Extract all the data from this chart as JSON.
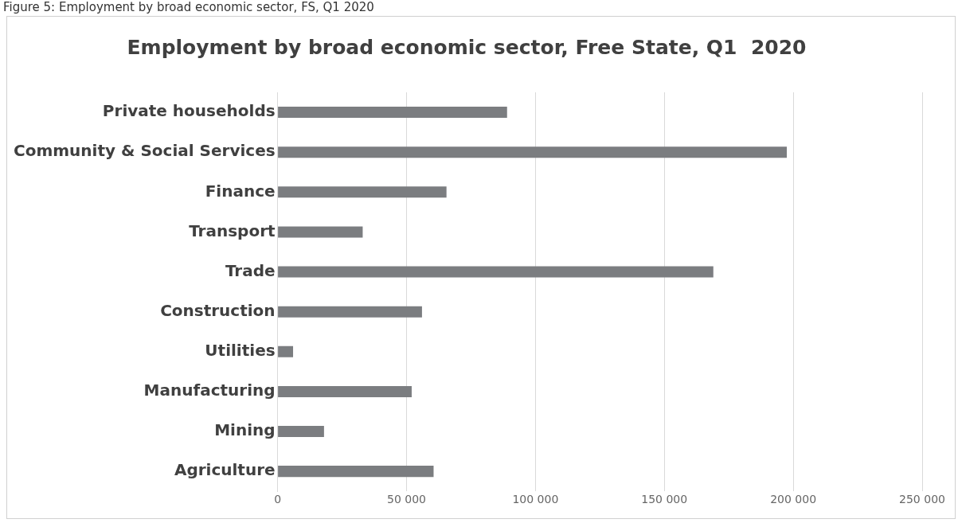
{
  "chart_data": {
    "type": "bar",
    "orientation": "horizontal",
    "title": "Employment by broad economic sector, Free State, Q1  2020",
    "annotations": [
      "Figure 5:  Employment by broad economic sector, FS, Q1 2020"
    ],
    "categories": [
      "Private households",
      "Community & Social Services",
      "Finance",
      "Transport",
      "Trade",
      "Construction",
      "Utilities",
      "Manufacturing",
      "Mining",
      "Agriculture"
    ],
    "values": [
      89000,
      197500,
      65500,
      33000,
      169000,
      56000,
      6000,
      52000,
      18000,
      60500
    ],
    "color": "#7b7d80",
    "xlim": [
      0,
      250000
    ],
    "xticks": [
      0,
      {
        "value": 50000,
        "label": "50 000"
      },
      {
        "value": 100000,
        "label": "100 000"
      },
      {
        "value": 150000,
        "label": "150 000"
      },
      {
        "value": 200000,
        "label": "200 000"
      },
      {
        "value": 250000,
        "label": "250 000"
      }
    ],
    "grid": "x"
  }
}
